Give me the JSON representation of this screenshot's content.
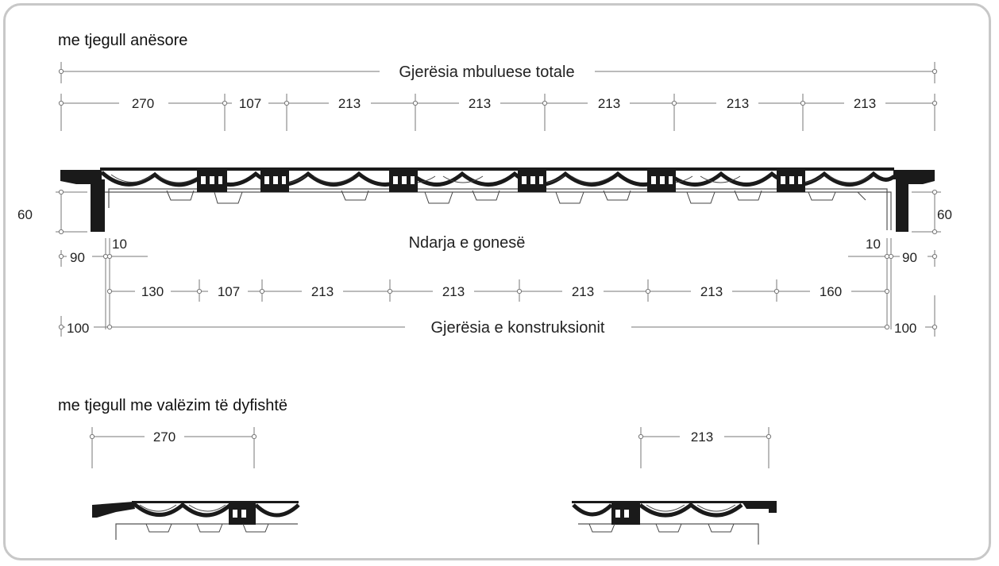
{
  "colors": {
    "line": "#777777",
    "tile": "#1a1a1a",
    "frame": "#c8c8c8"
  },
  "section1": {
    "title": "me tjegull anësore",
    "total_width_label": "Gjerësia mbuluese totale",
    "top_dims": [
      "270",
      "107",
      "213",
      "213",
      "213",
      "213",
      "213"
    ],
    "left_height": "60",
    "right_height": "60",
    "gutter_label": "Ndarja e gonesë",
    "left_overhang": "90",
    "left_gap": "10",
    "right_gap": "10",
    "right_overhang": "90",
    "bottom_dims": [
      "130",
      "107",
      "213",
      "213",
      "213",
      "213",
      "160"
    ],
    "left_offset": "100",
    "construction_label": "Gjerësia e konstruksionit",
    "right_offset": "100"
  },
  "section2": {
    "title": "me tjegull me valëzim të dyfishtë",
    "left_dim": "270",
    "right_dim": "213"
  }
}
